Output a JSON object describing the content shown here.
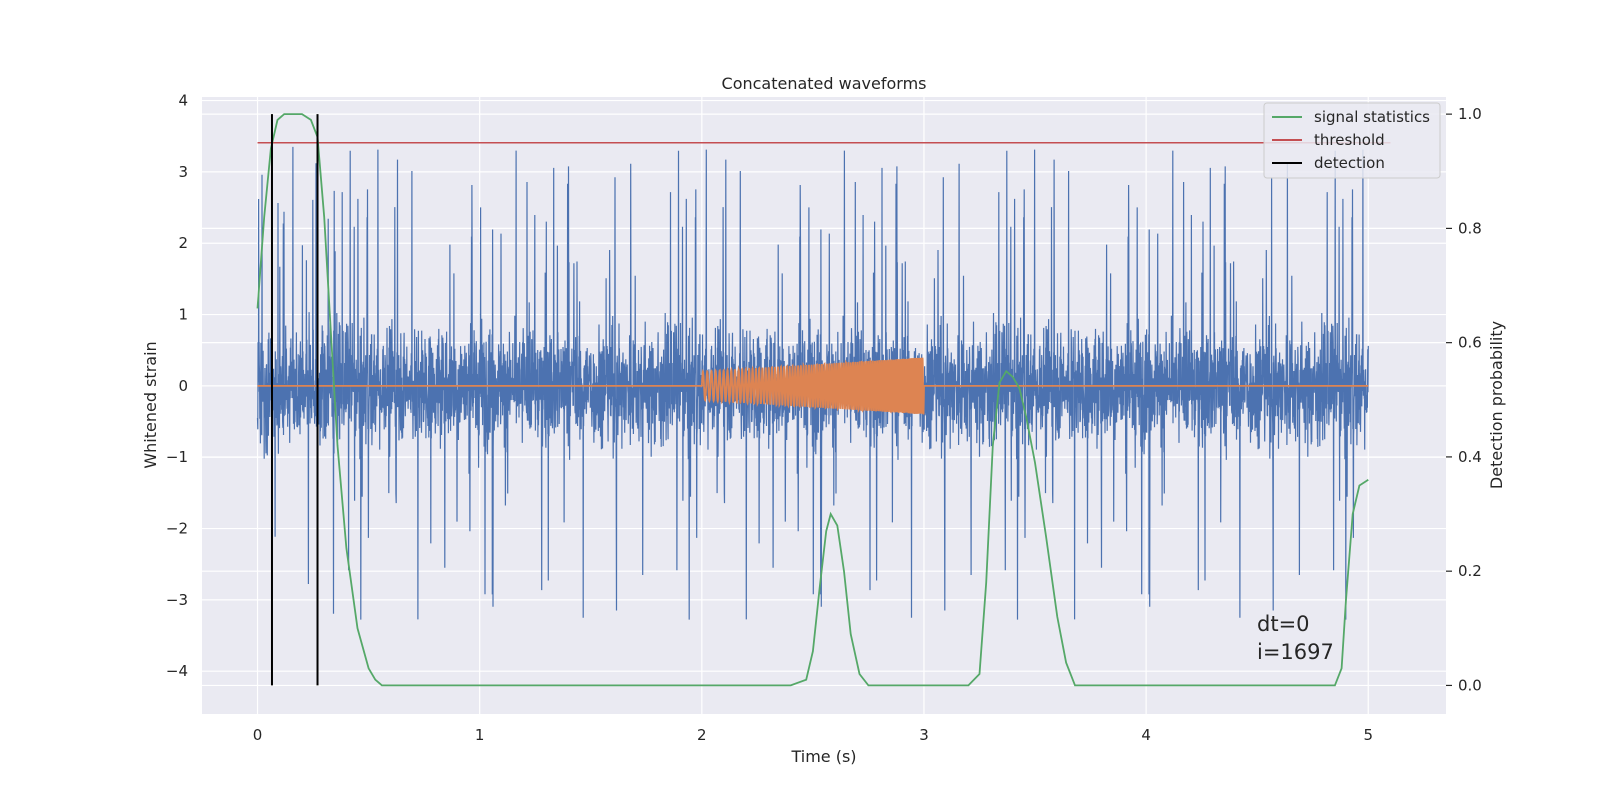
{
  "chart_data": {
    "type": "line",
    "title": "Concatenated waveforms",
    "xlabel": "Time (s)",
    "ylabel": "Whitened strain",
    "ylabel_right": "Detection probability",
    "xlim": [
      -0.25,
      5.35
    ],
    "ylim": [
      -4.6,
      4.05
    ],
    "ylim_right": [
      -0.05,
      1.03
    ],
    "x_ticks": [
      0,
      1,
      2,
      3,
      4,
      5
    ],
    "y_ticks": [
      4,
      3,
      2,
      1,
      0,
      -1,
      -2,
      -3,
      -4
    ],
    "y_tick_labels": [
      "4",
      "3",
      "2",
      "1",
      "0",
      "−1",
      "−2",
      "−3",
      "−4"
    ],
    "y_ticks_right": [
      1.0,
      0.8,
      0.6,
      0.4,
      0.2,
      0.0
    ],
    "y_tick_labels_right": [
      "1.0",
      "0.8",
      "0.6",
      "0.4",
      "0.2",
      "0.0"
    ],
    "grid": true,
    "legend_position": "top-right",
    "colors": {
      "strain": "#4c72b0",
      "template": "#dd8452",
      "statistics": "#55a868",
      "threshold": "#c44e52",
      "detection": "#000000",
      "background": "#eaeaf2",
      "grid": "#ffffff"
    },
    "series": [
      {
        "name": "",
        "axis": "left",
        "kind": "noise",
        "x_range": [
          0,
          5
        ],
        "typical_amplitude": 1.5,
        "peak_amplitude": 3.4
      },
      {
        "name": "",
        "axis": "left",
        "kind": "chirp",
        "x_range": [
          0,
          5
        ],
        "signal_window": [
          2.0,
          3.0
        ],
        "amplitude_start": 0.2,
        "amplitude_end": 0.4
      },
      {
        "name": "signal statistics",
        "axis": "right",
        "x": [
          0.0,
          0.03,
          0.06,
          0.09,
          0.12,
          0.16,
          0.2,
          0.24,
          0.27,
          0.3,
          0.33,
          0.36,
          0.4,
          0.45,
          0.5,
          0.53,
          0.56,
          0.6,
          1.0,
          1.5,
          2.0,
          2.4,
          2.47,
          2.5,
          2.53,
          2.56,
          2.58,
          2.61,
          2.64,
          2.67,
          2.71,
          2.75,
          2.8,
          3.0,
          3.2,
          3.25,
          3.28,
          3.31,
          3.34,
          3.37,
          3.4,
          3.43,
          3.46,
          3.5,
          3.55,
          3.6,
          3.64,
          3.68,
          3.75,
          4.0,
          4.2,
          4.5,
          4.85,
          4.88,
          4.9,
          4.93,
          4.96,
          5.0
        ],
        "y": [
          0.66,
          0.82,
          0.94,
          0.99,
          1.0,
          1.0,
          1.0,
          0.99,
          0.96,
          0.82,
          0.62,
          0.42,
          0.24,
          0.1,
          0.03,
          0.01,
          0.0,
          0.0,
          0.0,
          0.0,
          0.0,
          0.0,
          0.01,
          0.06,
          0.17,
          0.27,
          0.3,
          0.28,
          0.2,
          0.09,
          0.02,
          0.0,
          0.0,
          0.0,
          0.0,
          0.02,
          0.18,
          0.42,
          0.53,
          0.55,
          0.54,
          0.52,
          0.47,
          0.39,
          0.26,
          0.12,
          0.04,
          0.0,
          0.0,
          0.0,
          0.0,
          0.0,
          0.0,
          0.03,
          0.15,
          0.3,
          0.35,
          0.36
        ]
      },
      {
        "name": "threshold",
        "axis": "right",
        "x": [
          0,
          5.1
        ],
        "y": [
          0.95,
          0.95
        ]
      },
      {
        "name": "detection",
        "axis": "right",
        "vlines": [
          0.065,
          0.27
        ],
        "ymin": 0.0,
        "ymax": 1.0
      }
    ],
    "annotations": [
      "dt=0",
      "i=1697"
    ]
  }
}
